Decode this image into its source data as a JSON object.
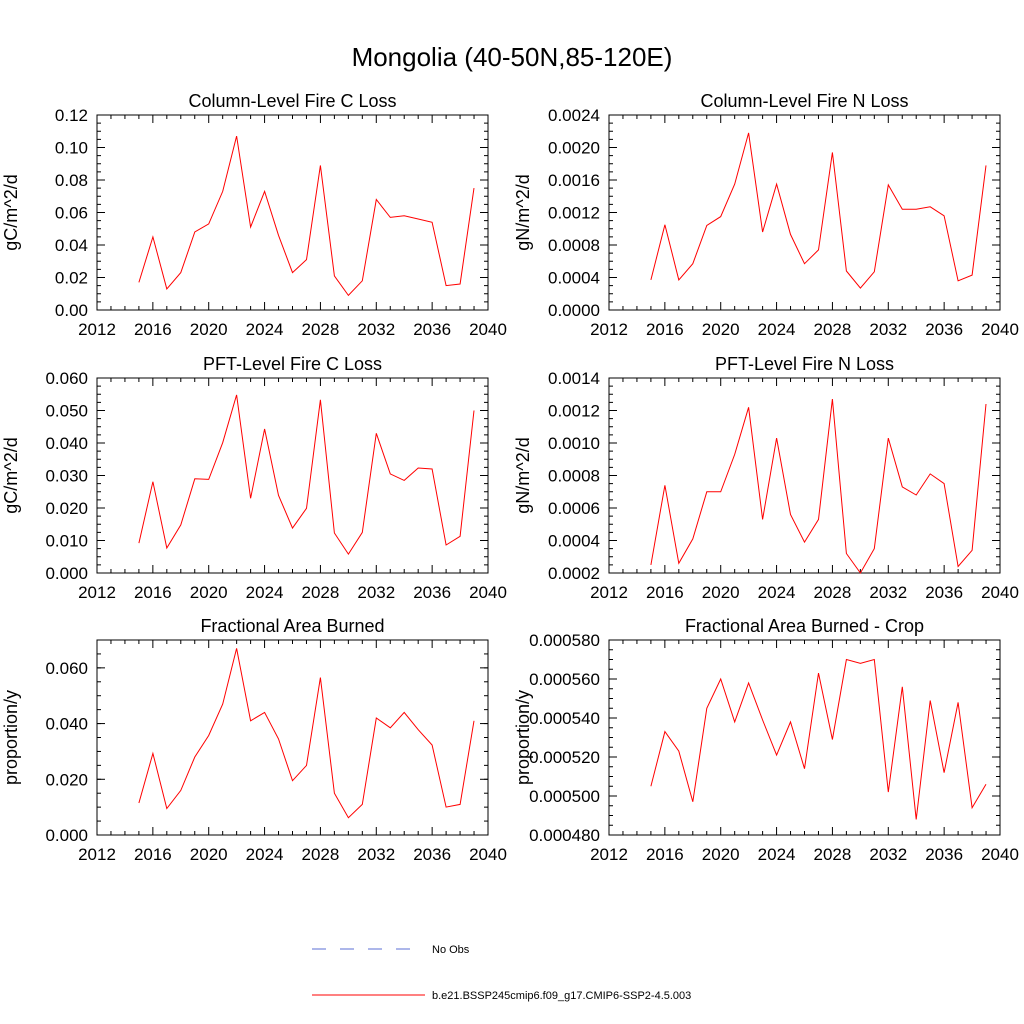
{
  "figure_title": "Mongolia (40-50N,85-120E)",
  "colors": {
    "model_line": "#ff0000",
    "obs_line": "#5b6fd6",
    "axis": "#000000"
  },
  "legend": {
    "placement": "bottom-center",
    "entries": [
      {
        "label": "No Obs",
        "style": "dashed",
        "color": "#5b6fd6"
      },
      {
        "label": "b.e21.BSSP245cmip6.f09_g17.CMIP6-SSP2-4.5.003",
        "style": "solid",
        "color": "#ff0000"
      }
    ]
  },
  "chart_data": [
    {
      "type": "line",
      "title": "Column-Level Fire C Loss",
      "xlabel": "",
      "ylabel": "gC/m^2/d",
      "xlim": [
        2012,
        2040
      ],
      "ylim": [
        0,
        0.12
      ],
      "xticks": [
        2012,
        2016,
        2020,
        2024,
        2028,
        2032,
        2036,
        2040
      ],
      "xtick_labels": [
        "2012",
        "2016",
        "2020",
        "2024",
        "2028",
        "2032",
        "2036",
        "2040"
      ],
      "yticks": [
        0,
        0.02,
        0.04,
        0.06,
        0.08,
        0.1,
        0.12
      ],
      "ytick_labels": [
        "0.00",
        "0.02",
        "0.04",
        "0.06",
        "0.08",
        "0.10",
        "0.12"
      ],
      "x": [
        2015,
        2016,
        2017,
        2018,
        2019,
        2020,
        2021,
        2022,
        2023,
        2024,
        2025,
        2026,
        2027,
        2028,
        2029,
        2030,
        2031,
        2032,
        2033,
        2034,
        2035,
        2036,
        2037,
        2038,
        2039
      ],
      "series": [
        {
          "name": "b.e21.BSSP245cmip6.f09_g17.CMIP6-SSP2-4.5.003",
          "values": [
            0.017,
            0.045,
            0.013,
            0.023,
            0.048,
            0.053,
            0.073,
            0.107,
            0.051,
            0.073,
            0.046,
            0.023,
            0.031,
            0.089,
            0.021,
            0.009,
            0.018,
            0.068,
            0.057,
            0.058,
            0.056,
            0.054,
            0.015,
            0.016,
            0.075
          ]
        }
      ]
    },
    {
      "type": "line",
      "title": "Column-Level Fire N Loss",
      "xlabel": "",
      "ylabel": "gN/m^2/d",
      "xlim": [
        2012,
        2040
      ],
      "ylim": [
        0,
        0.0024
      ],
      "xticks": [
        2012,
        2016,
        2020,
        2024,
        2028,
        2032,
        2036,
        2040
      ],
      "xtick_labels": [
        "2012",
        "2016",
        "2020",
        "2024",
        "2028",
        "2032",
        "2036",
        "2040"
      ],
      "yticks": [
        0,
        0.0004,
        0.0008,
        0.0012,
        0.0016,
        0.002,
        0.0024
      ],
      "ytick_labels": [
        "0.0000",
        "0.0004",
        "0.0008",
        "0.0012",
        "0.0016",
        "0.0020",
        "0.0024"
      ],
      "x": [
        2015,
        2016,
        2017,
        2018,
        2019,
        2020,
        2021,
        2022,
        2023,
        2024,
        2025,
        2026,
        2027,
        2028,
        2029,
        2030,
        2031,
        2032,
        2033,
        2034,
        2035,
        2036,
        2037,
        2038,
        2039
      ],
      "series": [
        {
          "name": "b.e21.BSSP245cmip6.f09_g17.CMIP6-SSP2-4.5.003",
          "values": [
            0.00037,
            0.00105,
            0.00037,
            0.00057,
            0.00104,
            0.00115,
            0.00155,
            0.00218,
            0.00096,
            0.00155,
            0.00093,
            0.00057,
            0.00074,
            0.00194,
            0.00048,
            0.00027,
            0.00047,
            0.00154,
            0.00124,
            0.00124,
            0.00127,
            0.00116,
            0.00036,
            0.00043,
            0.00178
          ]
        }
      ]
    },
    {
      "type": "line",
      "title": "PFT-Level Fire C Loss",
      "xlabel": "",
      "ylabel": "gC/m^2/d",
      "xlim": [
        2012,
        2040
      ],
      "ylim": [
        0,
        0.06
      ],
      "xticks": [
        2012,
        2016,
        2020,
        2024,
        2028,
        2032,
        2036,
        2040
      ],
      "xtick_labels": [
        "2012",
        "2016",
        "2020",
        "2024",
        "2028",
        "2032",
        "2036",
        "2040"
      ],
      "yticks": [
        0,
        0.01,
        0.02,
        0.03,
        0.04,
        0.05,
        0.06
      ],
      "ytick_labels": [
        "0.000",
        "0.010",
        "0.020",
        "0.030",
        "0.040",
        "0.050",
        "0.060"
      ],
      "x": [
        2015,
        2016,
        2017,
        2018,
        2019,
        2020,
        2021,
        2022,
        2023,
        2024,
        2025,
        2026,
        2027,
        2028,
        2029,
        2030,
        2031,
        2032,
        2033,
        2034,
        2035,
        2036,
        2037,
        2038,
        2039
      ],
      "series": [
        {
          "name": "b.e21.BSSP245cmip6.f09_g17.CMIP6-SSP2-4.5.003",
          "values": [
            0.0092,
            0.0281,
            0.0077,
            0.0148,
            0.029,
            0.0288,
            0.0401,
            0.0548,
            0.023,
            0.0443,
            0.0239,
            0.0138,
            0.0199,
            0.0533,
            0.0123,
            0.0058,
            0.0125,
            0.043,
            0.0305,
            0.0285,
            0.0323,
            0.032,
            0.0086,
            0.0113,
            0.05
          ]
        }
      ]
    },
    {
      "type": "line",
      "title": "PFT-Level Fire N Loss",
      "xlabel": "",
      "ylabel": "gN/m^2/d",
      "xlim": [
        2012,
        2040
      ],
      "ylim": [
        0.0002,
        0.0014
      ],
      "xticks": [
        2012,
        2016,
        2020,
        2024,
        2028,
        2032,
        2036,
        2040
      ],
      "xtick_labels": [
        "2012",
        "2016",
        "2020",
        "2024",
        "2028",
        "2032",
        "2036",
        "2040"
      ],
      "yticks": [
        0.0002,
        0.0004,
        0.0006,
        0.0008,
        0.001,
        0.0012,
        0.0014
      ],
      "ytick_labels": [
        "0.0002",
        "0.0004",
        "0.0006",
        "0.0008",
        "0.0010",
        "0.0012",
        "0.0014"
      ],
      "x": [
        2015,
        2016,
        2017,
        2018,
        2019,
        2020,
        2021,
        2022,
        2023,
        2024,
        2025,
        2026,
        2027,
        2028,
        2029,
        2030,
        2031,
        2032,
        2033,
        2034,
        2035,
        2036,
        2037,
        2038,
        2039
      ],
      "series": [
        {
          "name": "b.e21.BSSP245cmip6.f09_g17.CMIP6-SSP2-4.5.003",
          "values": [
            0.00025,
            0.00074,
            0.00026,
            0.00041,
            0.0007,
            0.0007,
            0.00093,
            0.00122,
            0.00053,
            0.00103,
            0.00056,
            0.00039,
            0.00053,
            0.00127,
            0.00032,
            0.0002,
            0.00035,
            0.00103,
            0.00073,
            0.00068,
            0.00081,
            0.00075,
            0.00024,
            0.00034,
            0.00124
          ]
        }
      ]
    },
    {
      "type": "line",
      "title": "Fractional Area Burned",
      "xlabel": "",
      "ylabel": "proportion/y",
      "xlim": [
        2012,
        2040
      ],
      "ylim": [
        0,
        0.07
      ],
      "xticks": [
        2012,
        2016,
        2020,
        2024,
        2028,
        2032,
        2036,
        2040
      ],
      "xtick_labels": [
        "2012",
        "2016",
        "2020",
        "2024",
        "2028",
        "2032",
        "2036",
        "2040"
      ],
      "yticks": [
        0,
        0.02,
        0.04,
        0.06
      ],
      "ytick_labels": [
        "0.000",
        "0.020",
        "0.040",
        "0.060"
      ],
      "x": [
        2015,
        2016,
        2017,
        2018,
        2019,
        2020,
        2021,
        2022,
        2023,
        2024,
        2025,
        2026,
        2027,
        2028,
        2029,
        2030,
        2031,
        2032,
        2033,
        2034,
        2035,
        2036,
        2037,
        2038,
        2039
      ],
      "series": [
        {
          "name": "b.e21.BSSP245cmip6.f09_g17.CMIP6-SSP2-4.5.003",
          "values": [
            0.0115,
            0.0293,
            0.0095,
            0.016,
            0.028,
            0.0357,
            0.047,
            0.067,
            0.041,
            0.044,
            0.0345,
            0.0195,
            0.025,
            0.0565,
            0.015,
            0.0062,
            0.011,
            0.042,
            0.0385,
            0.044,
            0.0378,
            0.0323,
            0.01,
            0.011,
            0.041
          ]
        }
      ]
    },
    {
      "type": "line",
      "title": "Fractional Area Burned - Crop",
      "xlabel": "",
      "ylabel": "proportion/y",
      "xlim": [
        2012,
        2040
      ],
      "ylim": [
        0.00048,
        0.00058
      ],
      "xticks": [
        2012,
        2016,
        2020,
        2024,
        2028,
        2032,
        2036,
        2040
      ],
      "xtick_labels": [
        "2012",
        "2016",
        "2020",
        "2024",
        "2028",
        "2032",
        "2036",
        "2040"
      ],
      "yticks": [
        0.00048,
        0.0005,
        0.00052,
        0.00054,
        0.00056,
        0.00058
      ],
      "ytick_labels": [
        "0.000480",
        "0.000500",
        "0.000520",
        "0.000540",
        "0.000560",
        "0.000580"
      ],
      "x": [
        2015,
        2016,
        2017,
        2018,
        2019,
        2020,
        2021,
        2022,
        2023,
        2024,
        2025,
        2026,
        2027,
        2028,
        2029,
        2030,
        2031,
        2032,
        2033,
        2034,
        2035,
        2036,
        2037,
        2038,
        2039
      ],
      "series": [
        {
          "name": "b.e21.BSSP245cmip6.f09_g17.CMIP6-SSP2-4.5.003",
          "values": [
            0.000505,
            0.000533,
            0.000523,
            0.000497,
            0.000545,
            0.00056,
            0.000538,
            0.000558,
            0.000539,
            0.000521,
            0.000538,
            0.000514,
            0.000563,
            0.000529,
            0.00057,
            0.000568,
            0.00057,
            0.000502,
            0.000556,
            0.000488,
            0.000549,
            0.000512,
            0.000548,
            0.000494,
            0.000506
          ]
        }
      ]
    }
  ]
}
